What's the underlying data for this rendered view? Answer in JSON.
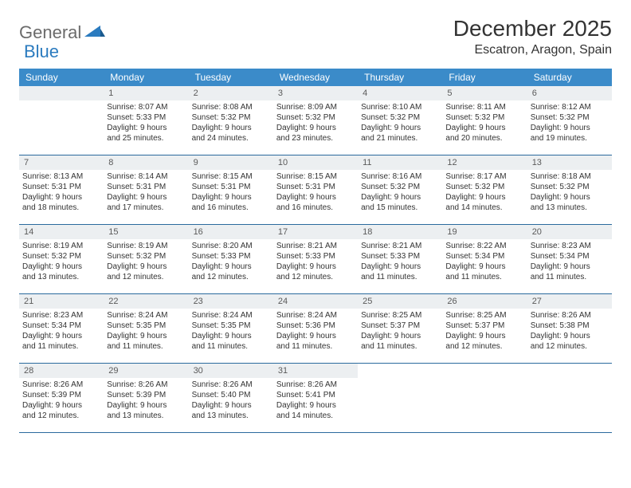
{
  "logo": {
    "part1": "General",
    "part2": "Blue"
  },
  "title": "December 2025",
  "location": "Escatron, Aragon, Spain",
  "colors": {
    "header_bg": "#3b8bc9",
    "daynum_bg": "#eceff1",
    "border": "#2b6a9e",
    "logo_gray": "#6b6b6b",
    "logo_blue": "#2b7bbf"
  },
  "weekdays": [
    "Sunday",
    "Monday",
    "Tuesday",
    "Wednesday",
    "Thursday",
    "Friday",
    "Saturday"
  ],
  "weeks": [
    [
      null,
      {
        "n": "1",
        "sr": "Sunrise: 8:07 AM",
        "ss": "Sunset: 5:33 PM",
        "d1": "Daylight: 9 hours",
        "d2": "and 25 minutes."
      },
      {
        "n": "2",
        "sr": "Sunrise: 8:08 AM",
        "ss": "Sunset: 5:32 PM",
        "d1": "Daylight: 9 hours",
        "d2": "and 24 minutes."
      },
      {
        "n": "3",
        "sr": "Sunrise: 8:09 AM",
        "ss": "Sunset: 5:32 PM",
        "d1": "Daylight: 9 hours",
        "d2": "and 23 minutes."
      },
      {
        "n": "4",
        "sr": "Sunrise: 8:10 AM",
        "ss": "Sunset: 5:32 PM",
        "d1": "Daylight: 9 hours",
        "d2": "and 21 minutes."
      },
      {
        "n": "5",
        "sr": "Sunrise: 8:11 AM",
        "ss": "Sunset: 5:32 PM",
        "d1": "Daylight: 9 hours",
        "d2": "and 20 minutes."
      },
      {
        "n": "6",
        "sr": "Sunrise: 8:12 AM",
        "ss": "Sunset: 5:32 PM",
        "d1": "Daylight: 9 hours",
        "d2": "and 19 minutes."
      }
    ],
    [
      {
        "n": "7",
        "sr": "Sunrise: 8:13 AM",
        "ss": "Sunset: 5:31 PM",
        "d1": "Daylight: 9 hours",
        "d2": "and 18 minutes."
      },
      {
        "n": "8",
        "sr": "Sunrise: 8:14 AM",
        "ss": "Sunset: 5:31 PM",
        "d1": "Daylight: 9 hours",
        "d2": "and 17 minutes."
      },
      {
        "n": "9",
        "sr": "Sunrise: 8:15 AM",
        "ss": "Sunset: 5:31 PM",
        "d1": "Daylight: 9 hours",
        "d2": "and 16 minutes."
      },
      {
        "n": "10",
        "sr": "Sunrise: 8:15 AM",
        "ss": "Sunset: 5:31 PM",
        "d1": "Daylight: 9 hours",
        "d2": "and 16 minutes."
      },
      {
        "n": "11",
        "sr": "Sunrise: 8:16 AM",
        "ss": "Sunset: 5:32 PM",
        "d1": "Daylight: 9 hours",
        "d2": "and 15 minutes."
      },
      {
        "n": "12",
        "sr": "Sunrise: 8:17 AM",
        "ss": "Sunset: 5:32 PM",
        "d1": "Daylight: 9 hours",
        "d2": "and 14 minutes."
      },
      {
        "n": "13",
        "sr": "Sunrise: 8:18 AM",
        "ss": "Sunset: 5:32 PM",
        "d1": "Daylight: 9 hours",
        "d2": "and 13 minutes."
      }
    ],
    [
      {
        "n": "14",
        "sr": "Sunrise: 8:19 AM",
        "ss": "Sunset: 5:32 PM",
        "d1": "Daylight: 9 hours",
        "d2": "and 13 minutes."
      },
      {
        "n": "15",
        "sr": "Sunrise: 8:19 AM",
        "ss": "Sunset: 5:32 PM",
        "d1": "Daylight: 9 hours",
        "d2": "and 12 minutes."
      },
      {
        "n": "16",
        "sr": "Sunrise: 8:20 AM",
        "ss": "Sunset: 5:33 PM",
        "d1": "Daylight: 9 hours",
        "d2": "and 12 minutes."
      },
      {
        "n": "17",
        "sr": "Sunrise: 8:21 AM",
        "ss": "Sunset: 5:33 PM",
        "d1": "Daylight: 9 hours",
        "d2": "and 12 minutes."
      },
      {
        "n": "18",
        "sr": "Sunrise: 8:21 AM",
        "ss": "Sunset: 5:33 PM",
        "d1": "Daylight: 9 hours",
        "d2": "and 11 minutes."
      },
      {
        "n": "19",
        "sr": "Sunrise: 8:22 AM",
        "ss": "Sunset: 5:34 PM",
        "d1": "Daylight: 9 hours",
        "d2": "and 11 minutes."
      },
      {
        "n": "20",
        "sr": "Sunrise: 8:23 AM",
        "ss": "Sunset: 5:34 PM",
        "d1": "Daylight: 9 hours",
        "d2": "and 11 minutes."
      }
    ],
    [
      {
        "n": "21",
        "sr": "Sunrise: 8:23 AM",
        "ss": "Sunset: 5:34 PM",
        "d1": "Daylight: 9 hours",
        "d2": "and 11 minutes."
      },
      {
        "n": "22",
        "sr": "Sunrise: 8:24 AM",
        "ss": "Sunset: 5:35 PM",
        "d1": "Daylight: 9 hours",
        "d2": "and 11 minutes."
      },
      {
        "n": "23",
        "sr": "Sunrise: 8:24 AM",
        "ss": "Sunset: 5:35 PM",
        "d1": "Daylight: 9 hours",
        "d2": "and 11 minutes."
      },
      {
        "n": "24",
        "sr": "Sunrise: 8:24 AM",
        "ss": "Sunset: 5:36 PM",
        "d1": "Daylight: 9 hours",
        "d2": "and 11 minutes."
      },
      {
        "n": "25",
        "sr": "Sunrise: 8:25 AM",
        "ss": "Sunset: 5:37 PM",
        "d1": "Daylight: 9 hours",
        "d2": "and 11 minutes."
      },
      {
        "n": "26",
        "sr": "Sunrise: 8:25 AM",
        "ss": "Sunset: 5:37 PM",
        "d1": "Daylight: 9 hours",
        "d2": "and 12 minutes."
      },
      {
        "n": "27",
        "sr": "Sunrise: 8:26 AM",
        "ss": "Sunset: 5:38 PM",
        "d1": "Daylight: 9 hours",
        "d2": "and 12 minutes."
      }
    ],
    [
      {
        "n": "28",
        "sr": "Sunrise: 8:26 AM",
        "ss": "Sunset: 5:39 PM",
        "d1": "Daylight: 9 hours",
        "d2": "and 12 minutes."
      },
      {
        "n": "29",
        "sr": "Sunrise: 8:26 AM",
        "ss": "Sunset: 5:39 PM",
        "d1": "Daylight: 9 hours",
        "d2": "and 13 minutes."
      },
      {
        "n": "30",
        "sr": "Sunrise: 8:26 AM",
        "ss": "Sunset: 5:40 PM",
        "d1": "Daylight: 9 hours",
        "d2": "and 13 minutes."
      },
      {
        "n": "31",
        "sr": "Sunrise: 8:26 AM",
        "ss": "Sunset: 5:41 PM",
        "d1": "Daylight: 9 hours",
        "d2": "and 14 minutes."
      },
      null,
      null,
      null
    ]
  ]
}
